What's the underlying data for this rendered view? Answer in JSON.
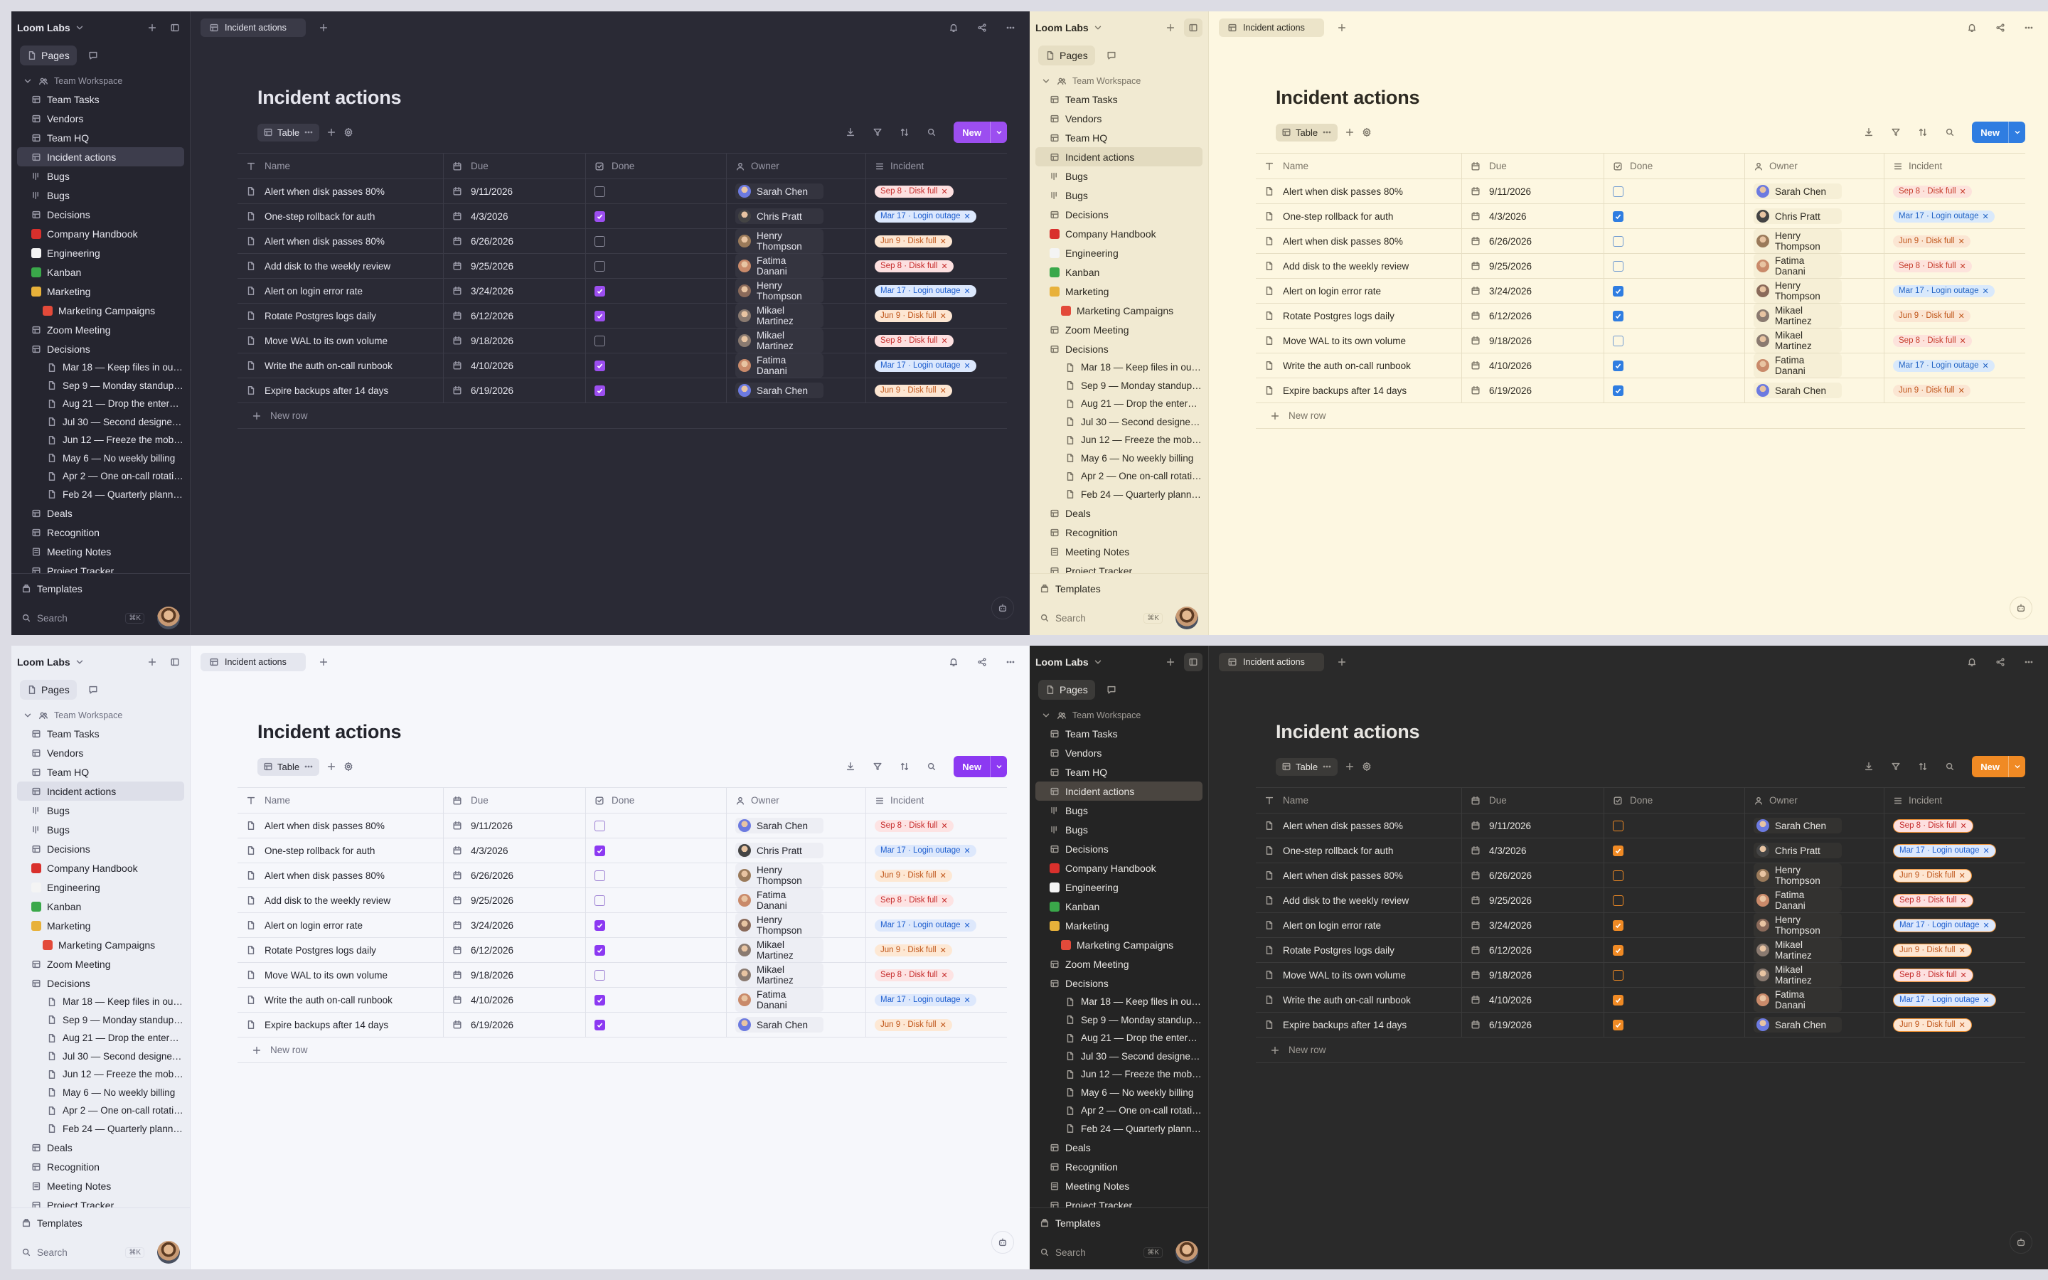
{
  "workspace": {
    "name": "Loom Labs",
    "tab_pages": "Pages"
  },
  "tree": [
    {
      "label": "Team Workspace",
      "level": 0,
      "icon": "people"
    },
    {
      "label": "Team Tasks",
      "level": 1,
      "icon": "db"
    },
    {
      "label": "Vendors",
      "level": 1,
      "icon": "db"
    },
    {
      "label": "Team HQ",
      "level": 1,
      "icon": "db"
    },
    {
      "label": "Incident actions",
      "level": 1,
      "icon": "db",
      "selected": true
    },
    {
      "label": "Bugs",
      "level": 1,
      "icon": "board"
    },
    {
      "label": "Bugs",
      "level": 1,
      "icon": "board"
    },
    {
      "label": "Decisions",
      "level": 1,
      "icon": "db"
    },
    {
      "label": "Company Handbook",
      "level": 1,
      "icon": "book"
    },
    {
      "label": "Engineering",
      "level": 1,
      "icon": "blank"
    },
    {
      "label": "Kanban",
      "level": 1,
      "icon": "puzzle"
    },
    {
      "label": "Marketing",
      "level": 1,
      "icon": "folder"
    },
    {
      "label": "Marketing Campaigns",
      "level": 1,
      "icon": "target",
      "indent": true
    },
    {
      "label": "Zoom Meeting",
      "level": 1,
      "icon": "db"
    },
    {
      "label": "Decisions",
      "level": 1,
      "icon": "db"
    },
    {
      "label": "Mar 18 — Keep files in our o...",
      "level": 2,
      "icon": "doc"
    },
    {
      "label": "Sep 9 — Monday standup g...",
      "level": 2,
      "icon": "doc"
    },
    {
      "label": "Aug 21 — Drop the enterpri...",
      "level": 2,
      "icon": "doc"
    },
    {
      "label": "Jul 30 — Second designer ...",
      "level": 2,
      "icon": "doc"
    },
    {
      "label": "Jun 12 — Freeze the mobile...",
      "level": 2,
      "icon": "doc"
    },
    {
      "label": "May 6 — No weekly billing",
      "level": 2,
      "icon": "doc"
    },
    {
      "label": "Apr 2 — One on-call rotatio...",
      "level": 2,
      "icon": "doc"
    },
    {
      "label": "Feb 24 — Quarterly plannin...",
      "level": 2,
      "icon": "doc"
    },
    {
      "label": "Deals",
      "level": 1,
      "icon": "db"
    },
    {
      "label": "Recognition",
      "level": 1,
      "icon": "db"
    },
    {
      "label": "Meeting Notes",
      "level": 1,
      "icon": "notes"
    },
    {
      "label": "Project Tracker",
      "level": 1,
      "icon": "db"
    }
  ],
  "sidebar_bottom": {
    "templates": "Templates",
    "search_placeholder": "Search",
    "shortcut": "⌘K"
  },
  "doc_tab": {
    "label": "Incident actions"
  },
  "page": {
    "title": "Incident actions",
    "view_label": "Table",
    "new_button": "New",
    "new_row": "New row",
    "columns": [
      "Name",
      "Due",
      "Done",
      "Owner",
      "Incident"
    ]
  },
  "rows": [
    {
      "name": "Alert when disk passes 80%",
      "due": "9/11/2026",
      "done": false,
      "owner": "Sarah Chen",
      "incident": "Sep 8 · Disk full",
      "inc_color": "red"
    },
    {
      "name": "One-step rollback for auth",
      "due": "4/3/2026",
      "done": true,
      "owner": "Chris Pratt",
      "incident": "Mar 17 · Login outage",
      "inc_color": "blue"
    },
    {
      "name": "Alert when disk passes 80%",
      "due": "6/26/2026",
      "done": false,
      "owner": "Henry Thompson",
      "incident": "Jun 9 · Disk full",
      "inc_color": "orange"
    },
    {
      "name": "Add disk to the weekly review",
      "due": "9/25/2026",
      "done": false,
      "owner": "Fatima Danani",
      "incident": "Sep 8 · Disk full",
      "inc_color": "red"
    },
    {
      "name": "Alert on login error rate",
      "due": "3/24/2026",
      "done": true,
      "owner": "Henry Thompson",
      "incident": "Mar 17 · Login outage",
      "inc_color": "blue"
    },
    {
      "name": "Rotate Postgres logs daily",
      "due": "6/12/2026",
      "done": true,
      "owner": "Mikael Martinez",
      "incident": "Jun 9 · Disk full",
      "inc_color": "orange"
    },
    {
      "name": "Move WAL to its own volume",
      "due": "9/18/2026",
      "done": false,
      "owner": "Mikael Martinez",
      "incident": "Sep 8 · Disk full",
      "inc_color": "red"
    },
    {
      "name": "Write the auth on-call runbook",
      "due": "4/10/2026",
      "done": true,
      "owner": "Fatima Danani",
      "incident": "Mar 17 · Login outage",
      "inc_color": "blue"
    },
    {
      "name": "Expire backups after 14 days",
      "due": "6/19/2026",
      "done": true,
      "owner": "Sarah Chen",
      "incident": "Jun 9 · Disk full",
      "inc_color": "orange"
    }
  ],
  "themes": [
    {
      "name": "dark",
      "accent": "#9c4ef0"
    },
    {
      "name": "cream",
      "accent": "#2f7de1"
    },
    {
      "name": "light",
      "accent": "#8c39f2"
    },
    {
      "name": "amber",
      "accent": "#f08a24"
    }
  ],
  "icons": [
    "chevron-down-icon",
    "plus-icon",
    "sidebar-toggle-icon",
    "page-icon",
    "chat-icon",
    "bell-icon",
    "share-icon",
    "more-icon",
    "download-icon",
    "filter-icon",
    "sort-icon",
    "search-icon",
    "settings-icon",
    "calendar-icon",
    "checkbox-icon",
    "person-icon",
    "list-icon",
    "text-icon",
    "bot-icon",
    "templates-icon"
  ]
}
